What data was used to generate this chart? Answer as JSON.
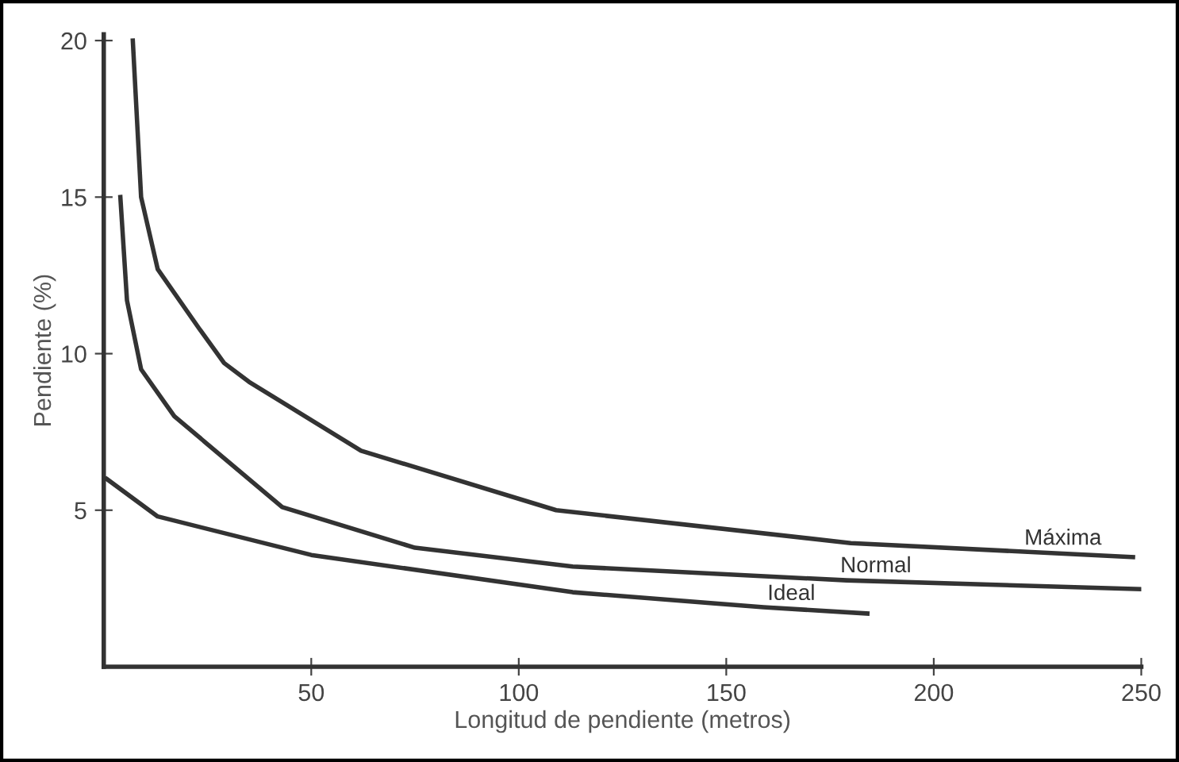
{
  "chart_data": {
    "type": "line",
    "xlabel": "Longitud de pendiente (metros)",
    "ylabel": "Pendiente (%)",
    "xlim": [
      0,
      250
    ],
    "ylim": [
      0,
      20.2
    ],
    "xticks": [
      50,
      100,
      150,
      200,
      250
    ],
    "yticks": [
      5,
      10,
      15,
      20
    ],
    "grid": false,
    "legend": false,
    "marker": "none",
    "line_style": "solid",
    "series": [
      {
        "name": "Máxima",
        "color": "#333333",
        "x": [
          7,
          9,
          13,
          23,
          29,
          35,
          62,
          109,
          180,
          248
        ],
        "values": [
          20,
          15,
          12.7,
          10.8,
          9.7,
          9.1,
          6.9,
          5.0,
          3.95,
          3.5
        ]
      },
      {
        "name": "Normal",
        "color": "#333333",
        "x": [
          4,
          5.6,
          9,
          17,
          43,
          75,
          113,
          179,
          250
        ],
        "values": [
          15,
          11.7,
          9.5,
          8.0,
          5.1,
          3.8,
          3.2,
          2.76,
          2.48
        ]
      },
      {
        "name": "Ideal",
        "color": "#333333",
        "x": [
          0.7,
          13,
          50,
          113,
          159,
          184
        ],
        "values": [
          6.0,
          4.8,
          3.57,
          2.38,
          1.9,
          1.7
        ]
      }
    ]
  }
}
